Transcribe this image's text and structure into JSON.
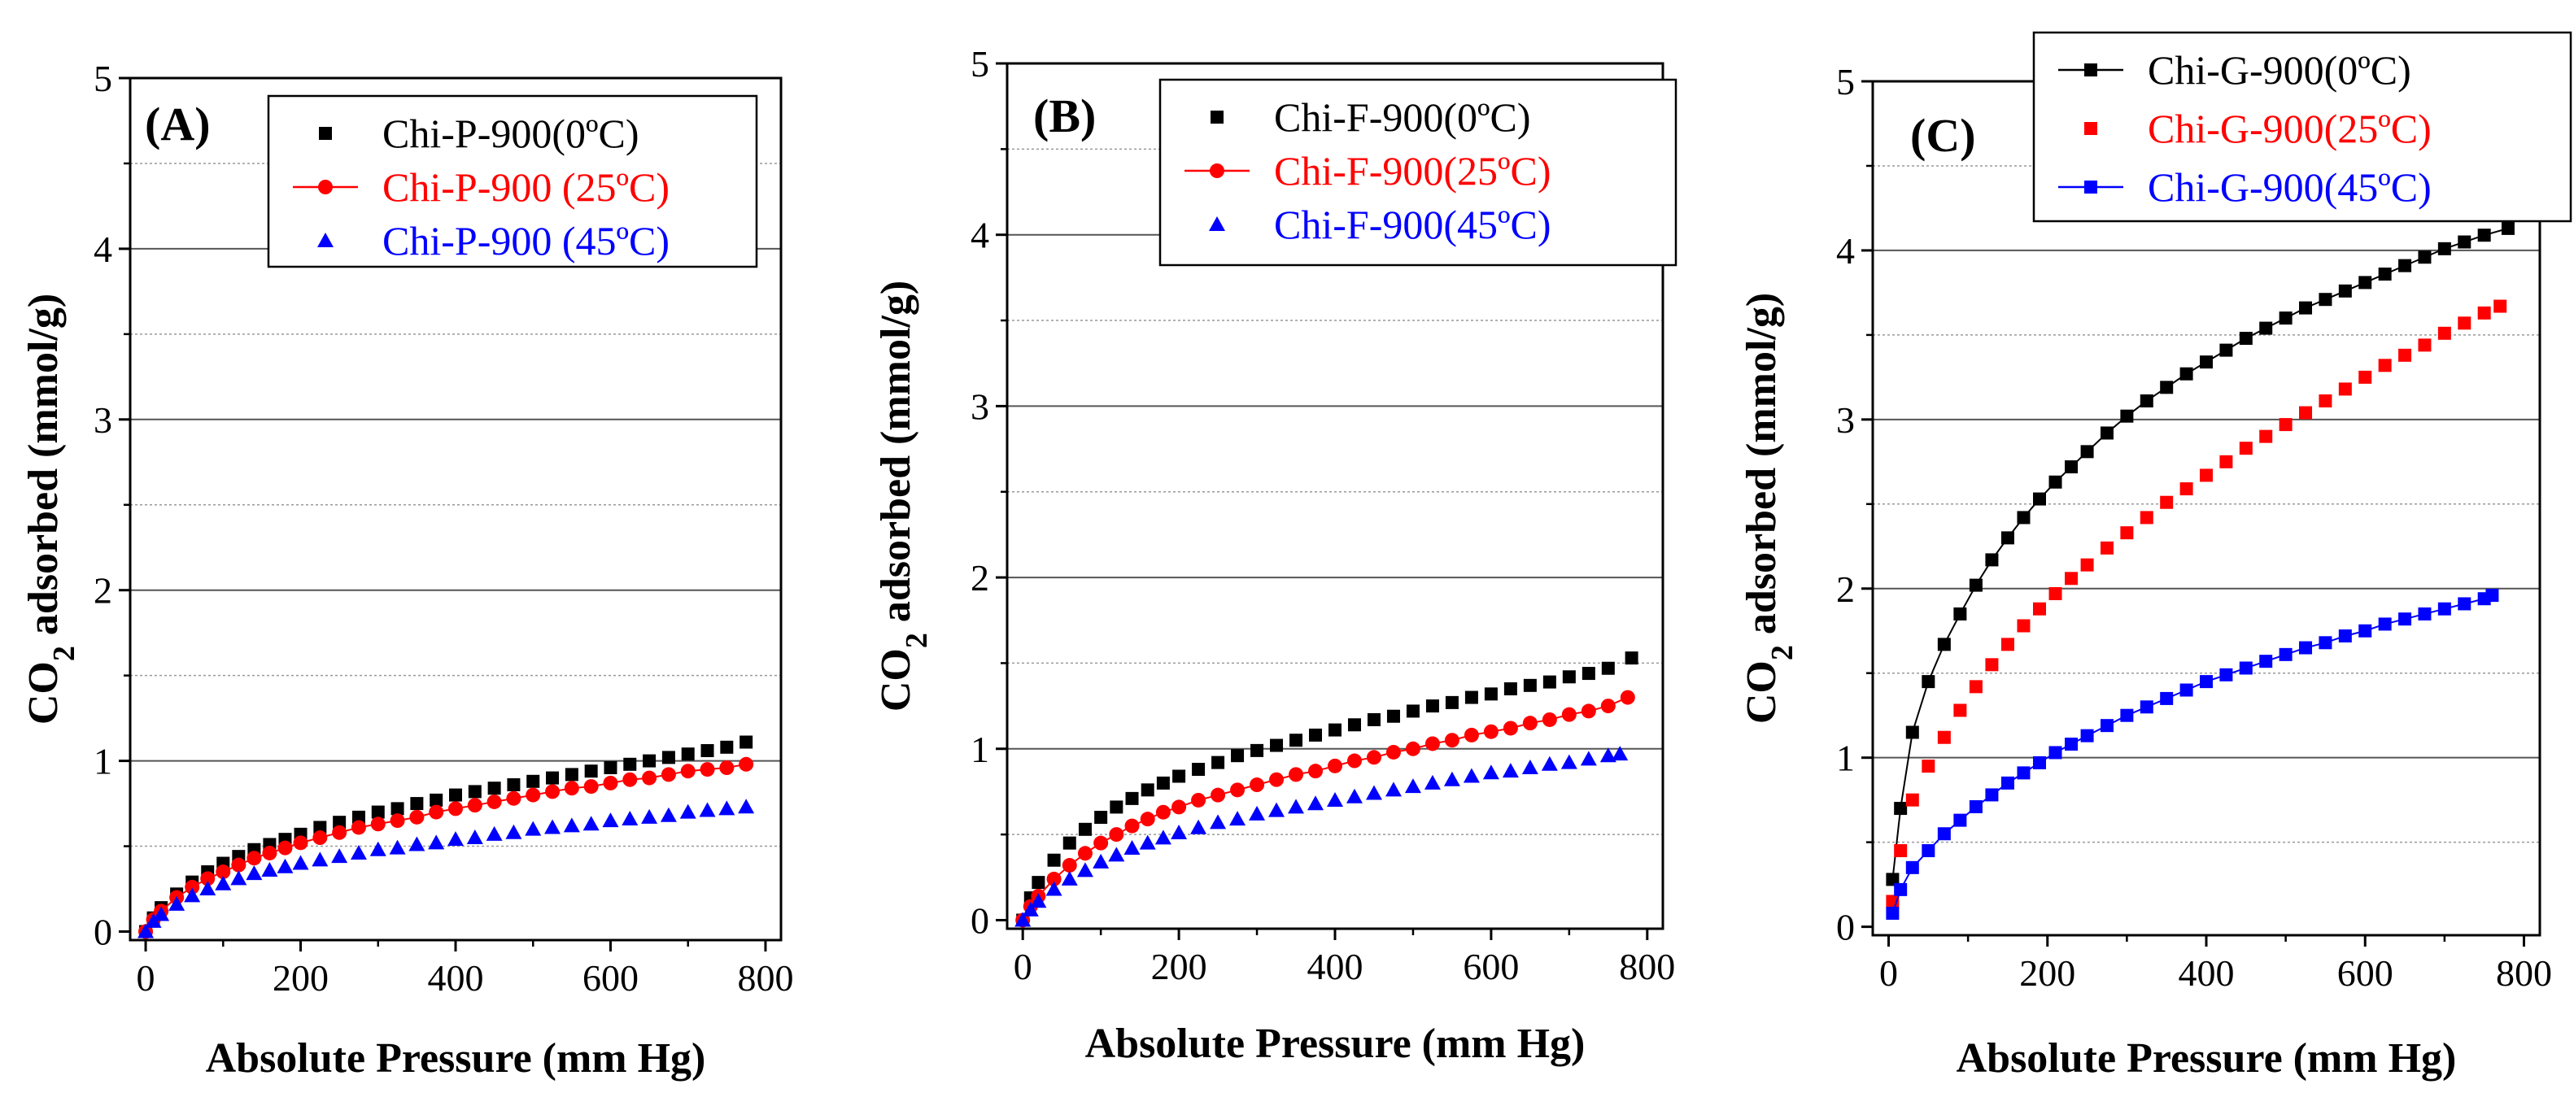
{
  "figure": {
    "chart_data": [
      {
        "type": "scatter",
        "panel_label": "(A)",
        "xlabel": "Absolute Pressure (mm Hg)",
        "ylabel": {
          "prefix": "CO",
          "sub": "2",
          "suffix": " adsorbed (mmol/g)"
        },
        "xlim": [
          -20,
          820
        ],
        "ylim": [
          -0.05,
          5
        ],
        "xticks": [
          "0",
          "200",
          "400",
          "600",
          "800"
        ],
        "xtick_values": [
          0,
          200,
          400,
          600,
          800
        ],
        "yticks": [
          "0",
          "1",
          "2",
          "3",
          "4",
          "5"
        ],
        "ytick_values": [
          0,
          1,
          2,
          3,
          4,
          5
        ],
        "grid_major": [
          1,
          2,
          3,
          4
        ],
        "grid_minor": [
          0.5,
          1.5,
          2.5,
          3.5,
          4.5
        ],
        "legend_position": "top-right",
        "series": [
          {
            "name": "Chi-P-900(0ºC)",
            "color": "#000000",
            "marker": "square",
            "line": false,
            "x": [
              0,
              10,
              20,
              40,
              60,
              80,
              100,
              120,
              140,
              160,
              180,
              200,
              225,
              250,
              275,
              300,
              325,
              350,
              375,
              400,
              425,
              450,
              475,
              500,
              525,
              550,
              575,
              600,
              625,
              650,
              675,
              700,
              725,
              750,
              775
            ],
            "y": [
              0,
              0.08,
              0.14,
              0.22,
              0.29,
              0.35,
              0.4,
              0.44,
              0.48,
              0.51,
              0.54,
              0.57,
              0.61,
              0.64,
              0.67,
              0.7,
              0.72,
              0.75,
              0.77,
              0.8,
              0.82,
              0.84,
              0.86,
              0.88,
              0.9,
              0.92,
              0.94,
              0.96,
              0.98,
              1.0,
              1.02,
              1.04,
              1.06,
              1.08,
              1.11
            ]
          },
          {
            "name": "Chi-P-900 (25ºC)",
            "color": "#ff0000",
            "marker": "circle",
            "line": true,
            "x": [
              0,
              10,
              20,
              40,
              60,
              80,
              100,
              120,
              140,
              160,
              180,
              200,
              225,
              250,
              275,
              300,
              325,
              350,
              375,
              400,
              425,
              450,
              475,
              500,
              525,
              550,
              575,
              600,
              625,
              650,
              675,
              700,
              725,
              750,
              775
            ],
            "y": [
              0,
              0.07,
              0.12,
              0.2,
              0.26,
              0.31,
              0.35,
              0.39,
              0.43,
              0.46,
              0.49,
              0.52,
              0.55,
              0.58,
              0.61,
              0.63,
              0.65,
              0.67,
              0.7,
              0.72,
              0.74,
              0.76,
              0.78,
              0.8,
              0.82,
              0.84,
              0.85,
              0.87,
              0.89,
              0.9,
              0.92,
              0.94,
              0.95,
              0.96,
              0.98
            ]
          },
          {
            "name": "Chi-P-900 (45ºC)",
            "color": "#0000ff",
            "marker": "triangle",
            "line": false,
            "x": [
              0,
              10,
              20,
              40,
              60,
              80,
              100,
              120,
              140,
              160,
              180,
              200,
              225,
              250,
              275,
              300,
              325,
              350,
              375,
              400,
              425,
              450,
              475,
              500,
              525,
              550,
              575,
              600,
              625,
              650,
              675,
              700,
              725,
              750,
              775
            ],
            "y": [
              0,
              0.06,
              0.1,
              0.16,
              0.21,
              0.25,
              0.28,
              0.31,
              0.34,
              0.36,
              0.38,
              0.4,
              0.42,
              0.44,
              0.46,
              0.48,
              0.49,
              0.51,
              0.52,
              0.54,
              0.55,
              0.57,
              0.58,
              0.6,
              0.61,
              0.62,
              0.63,
              0.65,
              0.66,
              0.67,
              0.68,
              0.7,
              0.71,
              0.72,
              0.73
            ]
          }
        ]
      },
      {
        "type": "scatter",
        "panel_label": "(B)",
        "xlabel": "Absolute Pressure (mm Hg)",
        "ylabel": {
          "prefix": "CO",
          "sub": "2",
          "suffix": " adsorbed (mmol/g)"
        },
        "xlim": [
          -20,
          820
        ],
        "ylim": [
          -0.05,
          5
        ],
        "xticks": [
          "0",
          "200",
          "400",
          "600",
          "800"
        ],
        "xtick_values": [
          0,
          200,
          400,
          600,
          800
        ],
        "yticks": [
          "0",
          "1",
          "2",
          "3",
          "4",
          "5"
        ],
        "ytick_values": [
          0,
          1,
          2,
          3,
          4,
          5
        ],
        "grid_major": [
          1,
          2,
          3,
          4
        ],
        "grid_minor": [
          0.5,
          1.5,
          2.5,
          3.5,
          4.5
        ],
        "legend_position": "top-right",
        "series": [
          {
            "name": "Chi-F-900(0ºC)",
            "color": "#000000",
            "marker": "square",
            "line": false,
            "x": [
              0,
              10,
              20,
              40,
              60,
              80,
              100,
              120,
              140,
              160,
              180,
              200,
              225,
              250,
              275,
              300,
              325,
              350,
              375,
              400,
              425,
              450,
              475,
              500,
              525,
              550,
              575,
              600,
              625,
              650,
              675,
              700,
              725,
              750,
              780
            ],
            "y": [
              0,
              0.13,
              0.22,
              0.35,
              0.45,
              0.53,
              0.6,
              0.66,
              0.71,
              0.76,
              0.8,
              0.84,
              0.88,
              0.92,
              0.96,
              0.99,
              1.02,
              1.05,
              1.08,
              1.11,
              1.14,
              1.17,
              1.19,
              1.22,
              1.25,
              1.27,
              1.3,
              1.32,
              1.35,
              1.37,
              1.39,
              1.42,
              1.44,
              1.47,
              1.53
            ]
          },
          {
            "name": "Chi-F-900(25ºC)",
            "color": "#ff0000",
            "marker": "circle",
            "line": true,
            "x": [
              0,
              10,
              20,
              40,
              60,
              80,
              100,
              120,
              140,
              160,
              180,
              200,
              225,
              250,
              275,
              300,
              325,
              350,
              375,
              400,
              425,
              450,
              475,
              500,
              525,
              550,
              575,
              600,
              625,
              650,
              675,
              700,
              725,
              750,
              775
            ],
            "y": [
              0,
              0.08,
              0.14,
              0.24,
              0.32,
              0.39,
              0.45,
              0.5,
              0.55,
              0.59,
              0.63,
              0.66,
              0.7,
              0.73,
              0.76,
              0.79,
              0.82,
              0.85,
              0.87,
              0.9,
              0.93,
              0.95,
              0.98,
              1.0,
              1.03,
              1.05,
              1.08,
              1.1,
              1.12,
              1.15,
              1.17,
              1.2,
              1.22,
              1.25,
              1.3
            ]
          },
          {
            "name": "Chi-F-900(45ºC)",
            "color": "#0000ff",
            "marker": "triangle",
            "line": false,
            "x": [
              0,
              10,
              20,
              40,
              60,
              80,
              100,
              120,
              140,
              160,
              180,
              200,
              225,
              250,
              275,
              300,
              325,
              350,
              375,
              400,
              425,
              450,
              475,
              500,
              525,
              550,
              575,
              600,
              625,
              650,
              675,
              700,
              725,
              750,
              765
            ],
            "y": [
              0,
              0.06,
              0.11,
              0.18,
              0.24,
              0.29,
              0.34,
              0.38,
              0.42,
              0.45,
              0.48,
              0.51,
              0.54,
              0.57,
              0.59,
              0.62,
              0.64,
              0.66,
              0.68,
              0.7,
              0.72,
              0.74,
              0.76,
              0.78,
              0.8,
              0.82,
              0.84,
              0.86,
              0.87,
              0.89,
              0.91,
              0.92,
              0.94,
              0.96,
              0.97
            ]
          }
        ]
      },
      {
        "type": "scatter",
        "panel_label": "(C)",
        "xlabel": "Absolute Pressure (mm Hg)",
        "ylabel": {
          "prefix": "CO",
          "sub": "2",
          "suffix": " adsorbed (mmol/g)"
        },
        "xlim": [
          -20,
          820
        ],
        "ylim": [
          -0.05,
          5
        ],
        "xticks": [
          "0",
          "200",
          "400",
          "600",
          "800"
        ],
        "xtick_values": [
          0,
          200,
          400,
          600,
          800
        ],
        "yticks": [
          "0",
          "1",
          "2",
          "3",
          "4",
          "5"
        ],
        "ytick_values": [
          0,
          1,
          2,
          3,
          4,
          5
        ],
        "grid_major": [
          1,
          2,
          3,
          4
        ],
        "grid_minor": [
          0.5,
          1.5,
          2.5,
          3.5,
          4.5
        ],
        "legend_position": "top-right",
        "series": [
          {
            "name": "Chi-G-900(0ºC)",
            "color": "#000000",
            "marker": "square",
            "line": true,
            "x": [
              5,
              15,
              30,
              50,
              70,
              90,
              110,
              130,
              150,
              170,
              190,
              210,
              230,
              250,
              275,
              300,
              325,
              350,
              375,
              400,
              425,
              450,
              475,
              500,
              525,
              550,
              575,
              600,
              625,
              650,
              675,
              700,
              725,
              750,
              780
            ],
            "y": [
              0.28,
              0.7,
              1.15,
              1.45,
              1.67,
              1.85,
              2.02,
              2.17,
              2.3,
              2.42,
              2.53,
              2.63,
              2.72,
              2.81,
              2.92,
              3.02,
              3.11,
              3.19,
              3.27,
              3.34,
              3.41,
              3.48,
              3.54,
              3.6,
              3.66,
              3.71,
              3.76,
              3.81,
              3.86,
              3.91,
              3.96,
              4.01,
              4.05,
              4.09,
              4.13
            ]
          },
          {
            "name": "Chi-G-900(25ºC)",
            "color": "#ff0000",
            "marker": "square",
            "line": false,
            "x": [
              5,
              15,
              30,
              50,
              70,
              90,
              110,
              130,
              150,
              170,
              190,
              210,
              230,
              250,
              275,
              300,
              325,
              350,
              375,
              400,
              425,
              450,
              475,
              500,
              525,
              550,
              575,
              600,
              625,
              650,
              675,
              700,
              725,
              750,
              770
            ],
            "y": [
              0.15,
              0.45,
              0.75,
              0.95,
              1.12,
              1.28,
              1.42,
              1.55,
              1.67,
              1.78,
              1.88,
              1.97,
              2.06,
              2.14,
              2.24,
              2.33,
              2.42,
              2.51,
              2.59,
              2.67,
              2.75,
              2.83,
              2.9,
              2.97,
              3.04,
              3.11,
              3.18,
              3.25,
              3.32,
              3.38,
              3.44,
              3.51,
              3.57,
              3.63,
              3.67
            ]
          },
          {
            "name": "Chi-G-900(45ºC)",
            "color": "#0000ff",
            "marker": "square",
            "line": true,
            "x": [
              5,
              15,
              30,
              50,
              70,
              90,
              110,
              130,
              150,
              170,
              190,
              210,
              230,
              250,
              275,
              300,
              325,
              350,
              375,
              400,
              425,
              450,
              475,
              500,
              525,
              550,
              575,
              600,
              625,
              650,
              675,
              700,
              725,
              750,
              760
            ],
            "y": [
              0.08,
              0.22,
              0.35,
              0.45,
              0.55,
              0.63,
              0.71,
              0.78,
              0.85,
              0.91,
              0.97,
              1.03,
              1.08,
              1.13,
              1.19,
              1.25,
              1.3,
              1.35,
              1.4,
              1.45,
              1.49,
              1.53,
              1.57,
              1.61,
              1.65,
              1.68,
              1.72,
              1.75,
              1.79,
              1.82,
              1.85,
              1.88,
              1.91,
              1.94,
              1.96
            ]
          }
        ]
      }
    ]
  }
}
